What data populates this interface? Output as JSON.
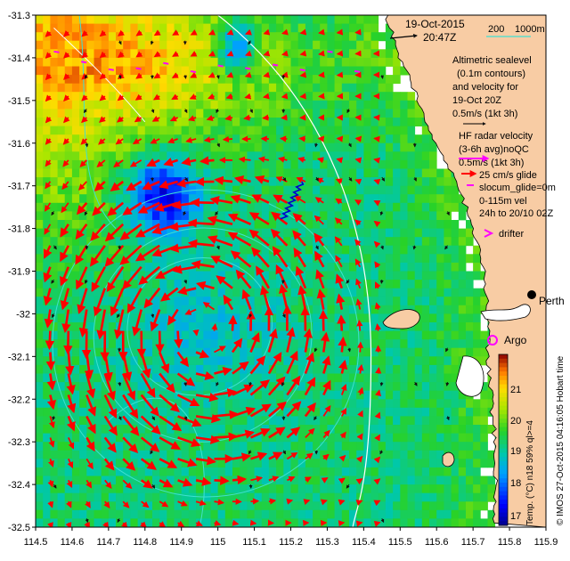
{
  "chart_data": {
    "type": "heatmap",
    "title": "19-Oct-2015",
    "time": "20:47Z",
    "x_ticks": [
      "114.5",
      "114.6",
      "114.7",
      "114.8",
      "114.9",
      "115",
      "115.1",
      "115.2",
      "115.3",
      "115.4",
      "115.5",
      "115.6",
      "115.7",
      "115.8",
      "115.9"
    ],
    "y_ticks": [
      "-31.3",
      "-31.4",
      "-31.5",
      "-31.6",
      "-31.7",
      "-31.8",
      "-31.9",
      "-32",
      "-32.1",
      "-32.2",
      "-32.3",
      "-32.4",
      "-32.5"
    ],
    "xlim": [
      114.5,
      115.9
    ],
    "ylim": [
      -32.5,
      -31.3
    ],
    "colorbar": {
      "ticks": [
        "21",
        "20",
        "19",
        "18",
        "17"
      ],
      "label": "Temp. (°C) n18 59% ql>=4",
      "range": [
        16.7,
        21.7
      ]
    },
    "depth_contours": {
      "label_200": "200",
      "label_1000": "1000m"
    },
    "legend": [
      {
        "text": "Altimetric sealevel"
      },
      {
        "text": "(0.1m contours)"
      },
      {
        "text": "and velocity for"
      },
      {
        "text": "19-Oct 20Z"
      },
      {
        "text": "0.5m/s (1kt 3h)"
      },
      {
        "text": "HF radar velocity"
      },
      {
        "text": "(3-6h avg)noQC"
      },
      {
        "text": "0.5m/s (1kt 3h)"
      },
      {
        "text": "25 cm/s glide"
      },
      {
        "text": "slocum_glide=0m"
      },
      {
        "text": "0-115m vel"
      },
      {
        "text": "24h to 20/10 02Z"
      },
      {
        "text": "drifter"
      }
    ],
    "places": [
      {
        "name": "Perth",
        "lon": 115.86,
        "lat": -31.95
      },
      {
        "name": "Argo",
        "lon": 115.73,
        "lat": -32.06
      }
    ],
    "credit": "© IMOS 27-Oct-2015 04:16:05 Hobart time",
    "eddy_center": {
      "lon": 114.95,
      "lat": -32.03
    },
    "colors": {
      "land": "#f8cca4",
      "arrow": "#ff0000",
      "hf_arrow": "#111111",
      "glider": "#ff00ff",
      "contour": "#40e0d0",
      "isobath": "#ffffff"
    }
  }
}
